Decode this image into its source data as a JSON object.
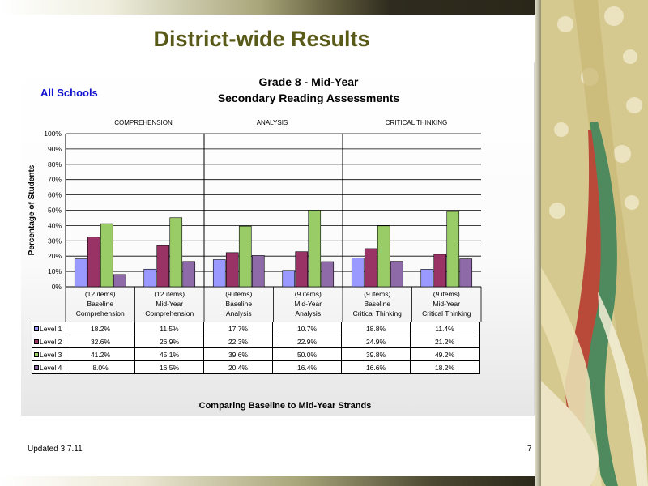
{
  "slide": {
    "title": "District-wide Results",
    "updated": "Updated  3.7.11",
    "page_number": "7"
  },
  "chart_data": {
    "type": "bar",
    "title": "Grade 8 - Mid-Year",
    "subtitle": "Secondary Reading Assessments",
    "annotation": "All Schools",
    "group_labels": [
      "COMPREHENSION",
      "ANALYSIS",
      "CRITICAL THINKING"
    ],
    "ylabel": "Percentage of Students",
    "xlabel": "Comparing Baseline to Mid-Year Strands",
    "ylim": [
      0,
      100
    ],
    "yticks": [
      "0%",
      "10%",
      "20%",
      "30%",
      "40%",
      "50%",
      "60%",
      "70%",
      "80%",
      "90%",
      "100%"
    ],
    "grid": true,
    "legend": "data-table",
    "categories": [
      [
        "(12 items)",
        "Baseline",
        "Comprehension"
      ],
      [
        "(12 items)",
        "Mid-Year",
        "Comprehension"
      ],
      [
        "(9 items)",
        "Baseline",
        "Analysis"
      ],
      [
        "(9 items)",
        "Mid-Year",
        "Analysis"
      ],
      [
        "(9 items)",
        "Baseline",
        "Critical Thinking"
      ],
      [
        "(9 items)",
        "Mid-Year",
        "Critical Thinking"
      ]
    ],
    "series": [
      {
        "name": "Level 1",
        "color": "#9999ff",
        "values": [
          18.2,
          11.5,
          17.7,
          10.7,
          18.8,
          11.4
        ],
        "labels": [
          "18.2%",
          "11.5%",
          "17.7%",
          "10.7%",
          "18.8%",
          "11.4%"
        ]
      },
      {
        "name": "Level 2",
        "color": "#993366",
        "values": [
          32.6,
          26.9,
          22.3,
          22.9,
          24.9,
          21.2
        ],
        "labels": [
          "32.6%",
          "26.9%",
          "22.3%",
          "22.9%",
          "24.9%",
          "21.2%"
        ]
      },
      {
        "name": "Level 3",
        "color": "#99cc66",
        "values": [
          41.2,
          45.1,
          39.6,
          50.0,
          39.8,
          49.2
        ],
        "labels": [
          "41.2%",
          "45.1%",
          "39.6%",
          "50.0%",
          "39.8%",
          "49.2%"
        ]
      },
      {
        "name": "Level 4",
        "color": "#8e6aa8",
        "values": [
          8.0,
          16.5,
          20.4,
          16.4,
          16.6,
          18.2
        ],
        "labels": [
          "8.0%",
          "16.5%",
          "20.4%",
          "16.4%",
          "16.6%",
          "18.2%"
        ]
      }
    ]
  }
}
